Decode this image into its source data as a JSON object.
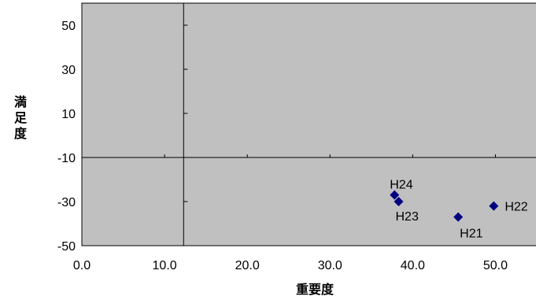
{
  "chart_data": {
    "type": "scatter",
    "title": "",
    "xlabel": "重要度",
    "ylabel": "満足度",
    "xlim": [
      0,
      55
    ],
    "ylim": [
      -50,
      60
    ],
    "x_ticks": [
      "0.0",
      "10.0",
      "20.0",
      "30.0",
      "40.0",
      "50.0"
    ],
    "y_ticks": [
      "50",
      "30",
      "10",
      "-10",
      "-30",
      "-50"
    ],
    "grid": false,
    "legend": "none",
    "plot_background": "#c0c0c0",
    "marker_color": "#000080",
    "marker_shape": "diamond",
    "quadrant_lines": {
      "x": 12.3,
      "y": -10
    },
    "points": [
      {
        "label": "H21",
        "x": 45.5,
        "y": -37
      },
      {
        "label": "H22",
        "x": 49.8,
        "y": -32
      },
      {
        "label": "H23",
        "x": 38.3,
        "y": -30
      },
      {
        "label": "H24",
        "x": 37.8,
        "y": -27
      }
    ]
  }
}
